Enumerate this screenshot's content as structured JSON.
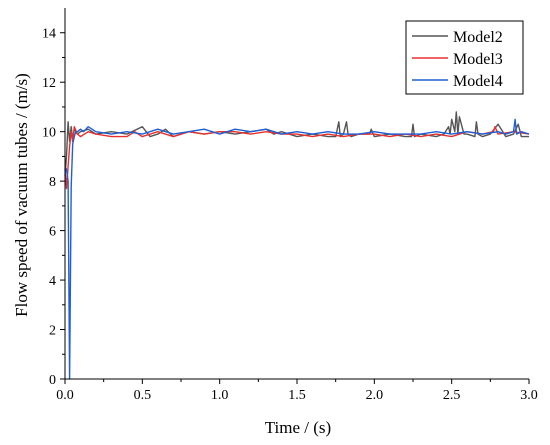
{
  "chart_data": {
    "type": "line",
    "title": "",
    "xlabel": "Time / (s)",
    "ylabel": "Flow speed of vacuum tubes / (m/s)",
    "xlim": [
      0,
      3.0
    ],
    "ylim": [
      0,
      15
    ],
    "xticks": [
      0.0,
      0.5,
      1.0,
      1.5,
      2.0,
      2.5,
      3.0
    ],
    "xtick_labels": [
      "0.0",
      "0.5",
      "1.0",
      "1.5",
      "2.0",
      "2.5",
      "3.0"
    ],
    "yticks": [
      0,
      2,
      4,
      6,
      8,
      10,
      12,
      14
    ],
    "ytick_labels": [
      "0",
      "2",
      "4",
      "6",
      "8",
      "10",
      "12",
      "14"
    ],
    "grid": false,
    "legend_position": "top-right",
    "series": [
      {
        "name": "Model2",
        "color": "#555555",
        "x": [
          0.0,
          0.01,
          0.02,
          0.03,
          0.04,
          0.05,
          0.06,
          0.08,
          0.1,
          0.15,
          0.2,
          0.3,
          0.4,
          0.5,
          0.55,
          0.6,
          0.65,
          0.7,
          0.8,
          0.9,
          1.0,
          1.1,
          1.2,
          1.3,
          1.35,
          1.4,
          1.5,
          1.6,
          1.7,
          1.75,
          1.77,
          1.78,
          1.8,
          1.82,
          1.83,
          1.85,
          1.9,
          1.97,
          1.98,
          2.0,
          2.1,
          2.2,
          2.24,
          2.25,
          2.26,
          2.3,
          2.4,
          2.45,
          2.48,
          2.49,
          2.5,
          2.52,
          2.53,
          2.54,
          2.55,
          2.58,
          2.6,
          2.65,
          2.66,
          2.67,
          2.7,
          2.75,
          2.8,
          2.85,
          2.9,
          2.93,
          2.95,
          3.0
        ],
        "values": [
          8.2,
          9.0,
          10.4,
          9.6,
          10.2,
          9.7,
          10.1,
          9.9,
          10.0,
          10.1,
          9.9,
          10.0,
          9.9,
          10.2,
          9.8,
          9.9,
          10.1,
          9.8,
          10.0,
          9.9,
          10.0,
          9.9,
          10.0,
          10.1,
          9.9,
          10.0,
          9.8,
          9.9,
          9.8,
          9.8,
          10.4,
          9.8,
          9.9,
          10.4,
          9.9,
          9.8,
          9.9,
          9.9,
          10.1,
          9.8,
          9.9,
          9.8,
          9.8,
          10.3,
          9.8,
          9.9,
          9.8,
          9.9,
          10.2,
          9.9,
          10.5,
          10.0,
          10.8,
          9.9,
          10.6,
          9.9,
          9.9,
          9.8,
          10.4,
          9.9,
          9.8,
          9.9,
          10.3,
          9.8,
          9.9,
          10.3,
          9.8,
          9.8
        ]
      },
      {
        "name": "Model3",
        "color": "#e8312e",
        "x": [
          0.0,
          0.01,
          0.02,
          0.03,
          0.04,
          0.05,
          0.06,
          0.08,
          0.1,
          0.15,
          0.2,
          0.3,
          0.4,
          0.45,
          0.5,
          0.6,
          0.7,
          0.8,
          0.9,
          1.0,
          1.1,
          1.2,
          1.3,
          1.4,
          1.5,
          1.6,
          1.7,
          1.8,
          1.9,
          2.0,
          2.1,
          2.2,
          2.3,
          2.4,
          2.5,
          2.6,
          2.7,
          2.77,
          2.78,
          2.8,
          2.9,
          3.0
        ],
        "values": [
          8.5,
          7.7,
          8.6,
          9.4,
          10.0,
          9.6,
          10.2,
          9.9,
          9.8,
          10.0,
          9.9,
          9.8,
          9.8,
          10.0,
          9.8,
          10.0,
          9.8,
          10.0,
          9.9,
          10.0,
          10.0,
          9.9,
          10.0,
          9.9,
          9.9,
          9.8,
          9.9,
          9.8,
          9.9,
          9.9,
          9.8,
          9.9,
          9.8,
          9.9,
          9.8,
          10.0,
          9.9,
          10.0,
          10.2,
          9.9,
          10.0,
          9.9
        ]
      },
      {
        "name": "Model4",
        "color": "#1f5ed6",
        "x": [
          0.0,
          0.01,
          0.02,
          0.03,
          0.04,
          0.05,
          0.06,
          0.07,
          0.08,
          0.1,
          0.12,
          0.15,
          0.2,
          0.3,
          0.4,
          0.5,
          0.6,
          0.7,
          0.8,
          0.9,
          1.0,
          1.1,
          1.2,
          1.3,
          1.4,
          1.5,
          1.6,
          1.7,
          1.8,
          1.9,
          2.0,
          2.1,
          2.2,
          2.3,
          2.4,
          2.5,
          2.6,
          2.7,
          2.8,
          2.85,
          2.9,
          2.91,
          2.92,
          2.95,
          3.0
        ],
        "values": [
          8.3,
          8.5,
          8.0,
          0.0,
          7.8,
          9.5,
          9.8,
          10.0,
          10.0,
          10.1,
          10.0,
          10.2,
          10.0,
          9.9,
          10.0,
          9.9,
          10.1,
          9.9,
          10.0,
          10.1,
          9.9,
          10.1,
          10.0,
          10.1,
          9.9,
          10.0,
          9.9,
          10.0,
          9.9,
          9.9,
          10.0,
          9.9,
          9.9,
          9.9,
          10.0,
          9.9,
          10.0,
          9.9,
          10.0,
          9.9,
          10.0,
          10.5,
          9.9,
          10.0,
          9.9
        ]
      }
    ]
  }
}
